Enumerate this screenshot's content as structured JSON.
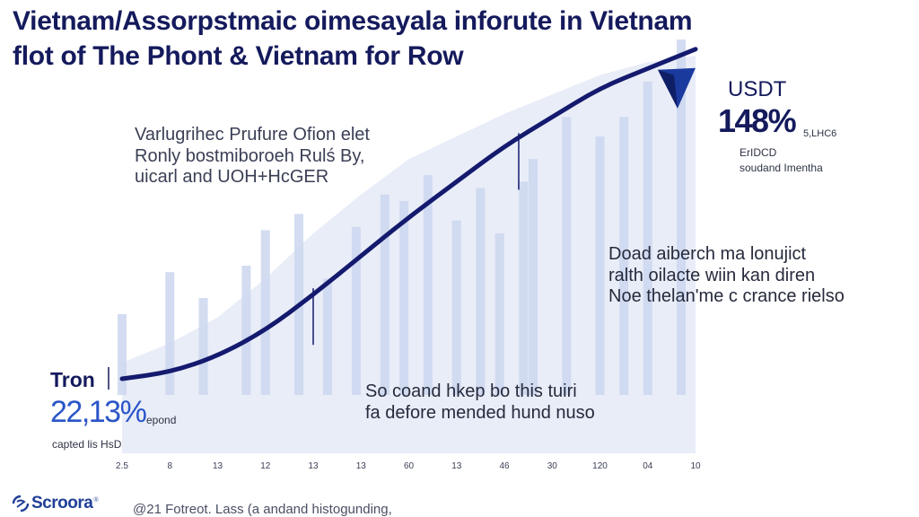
{
  "title": {
    "line1": "Vietnam/Assorpstmaic oimesayala inforute in Vietnam",
    "line2": "flot of The Phont & Vietnam for Row"
  },
  "annotations": {
    "top_left": [
      "Varlugrihec Prufure Ofion elet",
      "Ronly bostmiboroeh Rulś By,",
      "uicarl and UOH+HcGER"
    ],
    "middle_right": [
      "Doad aiberch ma lonujict",
      "ralth oilacte wiin kan diren",
      "Noe thelan'me c crance rielso"
    ],
    "bottom_center": [
      "So coand hkep bo this tuiri",
      "fa defore mended hund nuso"
    ]
  },
  "start_marker": {
    "name": "Tron",
    "value": "22,13%",
    "unit": "epond",
    "caption": "capted lis HsD"
  },
  "end_marker": {
    "name": "USDT",
    "value": "148%",
    "unit": "5,LHC6",
    "caption": [
      "ErIDCD",
      "soudand Imentha"
    ]
  },
  "logo": {
    "text": "Scroora",
    "mark": "®",
    "icon": "s-logo-icon"
  },
  "footer": "@21 Fotreot. Lass (a andand histogunding,",
  "chart_data": {
    "type": "line",
    "title": "Vietnam/Assorpstmaic oimesayala inforute in Vietnam",
    "xlabel": "",
    "ylabel": "",
    "x_tick_labels": [
      "2.5",
      "8",
      "13",
      "12",
      "13",
      "13",
      "60",
      "13",
      "46",
      "30",
      "120",
      "04",
      "10"
    ],
    "ylim": [
      0,
      100
    ],
    "line": {
      "name": "growth",
      "color": "#141a6e",
      "x": [
        0,
        1,
        2,
        3,
        4,
        5,
        6,
        7,
        8,
        9,
        10,
        11,
        12
      ],
      "y": [
        5,
        7,
        12,
        20,
        31,
        43,
        55,
        66,
        77,
        86,
        95,
        101,
        107
      ]
    },
    "area": {
      "name": "shaded range",
      "color": "#e9edf8",
      "y": [
        10,
        16,
        24,
        36,
        50,
        62,
        73,
        80,
        87,
        93,
        99,
        103,
        105
      ]
    },
    "bars": {
      "name": "background bars",
      "color": "#cbd6ee",
      "x": [
        0,
        1,
        1.7,
        2.6,
        3,
        3.7,
        4.3,
        4.9,
        5.5,
        5.9,
        6.4,
        7,
        7.5,
        7.9,
        8.4,
        8.6,
        9.3,
        10,
        10.5,
        11,
        11.7
      ],
      "y": [
        25,
        38,
        30,
        40,
        51,
        56,
        36,
        52,
        62,
        60,
        68,
        54,
        64,
        50,
        66,
        73,
        86,
        80,
        86,
        97,
        110
      ]
    },
    "drop_lines": [
      {
        "x": 4.0,
        "from": 33
      },
      {
        "x": 8.3,
        "from": 81
      }
    ]
  }
}
